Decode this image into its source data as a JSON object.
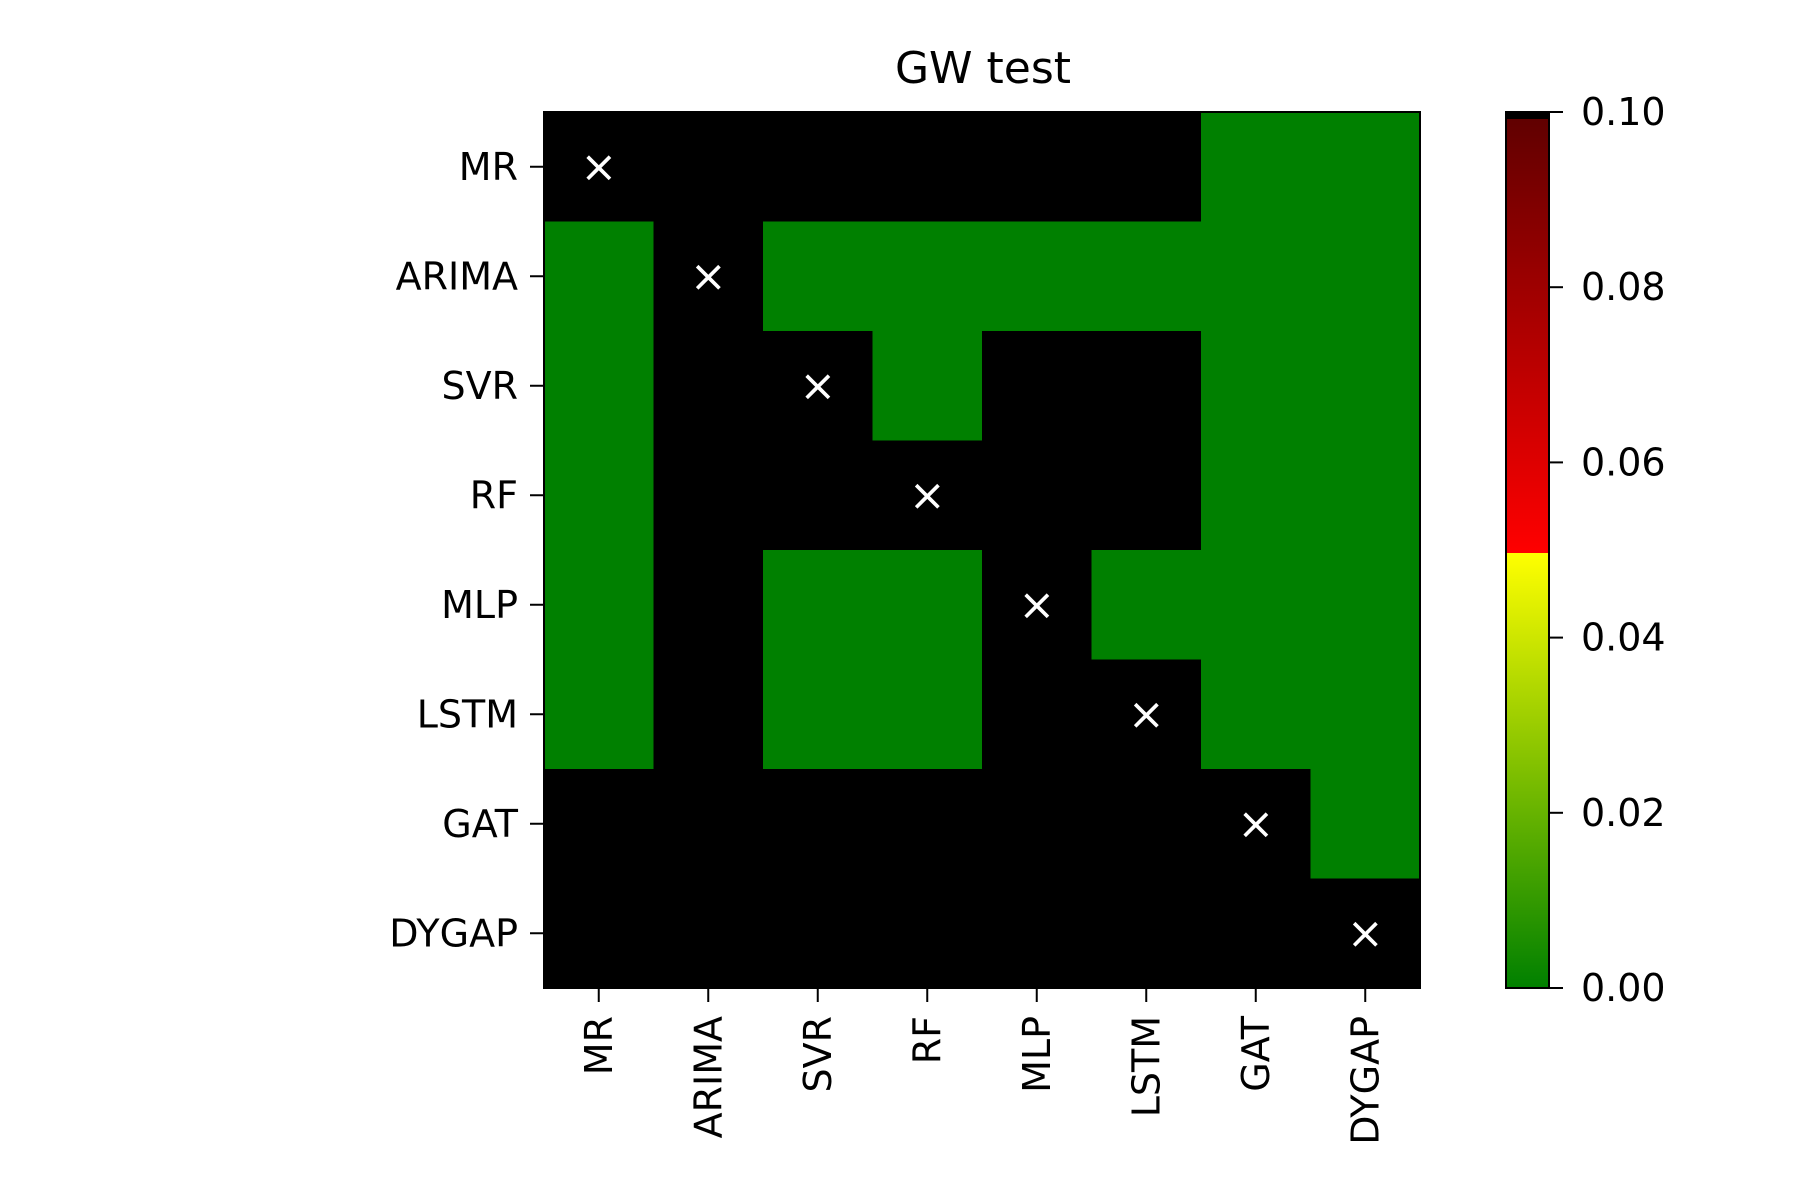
{
  "chart_data": {
    "type": "heatmap",
    "title": "GW test",
    "xlabel": "",
    "ylabel": "",
    "rows": [
      "MR",
      "ARIMA",
      "SVR",
      "RF",
      "MLP",
      "LSTM",
      "GAT",
      "DYGAP"
    ],
    "cols": [
      "MR",
      "ARIMA",
      "SVR",
      "RF",
      "MLP",
      "LSTM",
      "GAT",
      "DYGAP"
    ],
    "cell_state": [
      [
        "diag",
        "high",
        "high",
        "high",
        "high",
        "high",
        "low",
        "low"
      ],
      [
        "low",
        "diag",
        "low",
        "low",
        "low",
        "low",
        "low",
        "low"
      ],
      [
        "low",
        "high",
        "diag",
        "low",
        "high",
        "high",
        "low",
        "low"
      ],
      [
        "low",
        "high",
        "high",
        "diag",
        "high",
        "high",
        "low",
        "low"
      ],
      [
        "low",
        "high",
        "low",
        "low",
        "diag",
        "low",
        "low",
        "low"
      ],
      [
        "low",
        "high",
        "low",
        "low",
        "high",
        "diag",
        "low",
        "low"
      ],
      [
        "high",
        "high",
        "high",
        "high",
        "high",
        "high",
        "diag",
        "low"
      ],
      [
        "high",
        "high",
        "high",
        "high",
        "high",
        "high",
        "high",
        "diag"
      ]
    ],
    "diagonal_marker": "×",
    "state_colors": {
      "low": "#008000",
      "high": "#000000",
      "diag": "#000000"
    },
    "colorbar": {
      "range": [
        0.0,
        0.1
      ],
      "ticks": [
        "0.00",
        "0.02",
        "0.04",
        "0.06",
        "0.08",
        "0.10"
      ],
      "stops": [
        {
          "value": 0.0,
          "color": "#008000"
        },
        {
          "value": 0.05,
          "color": "#ffff00"
        },
        {
          "value": 0.05,
          "color": "#ff0000"
        },
        {
          "value": 0.1,
          "color": "#600000"
        }
      ],
      "over_color": "#000000"
    },
    "grid": false
  }
}
